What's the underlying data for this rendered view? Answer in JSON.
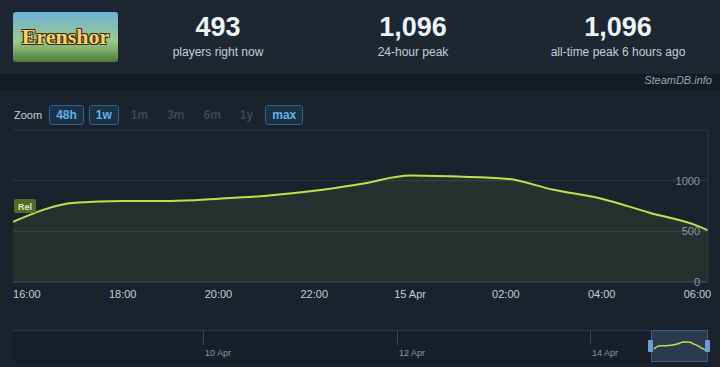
{
  "header": {
    "logo_text": "Erenshor",
    "stats": [
      {
        "value": "493",
        "label": "players right now"
      },
      {
        "value": "1,096",
        "label": "24-hour peak"
      },
      {
        "value": "1,096",
        "label": "all-time peak 6 hours ago"
      }
    ],
    "source": "SteamDB.info"
  },
  "zoom": {
    "label": "Zoom",
    "buttons": [
      {
        "text": "48h",
        "active": true
      },
      {
        "text": "1w",
        "active": true
      },
      {
        "text": "1m",
        "active": false
      },
      {
        "text": "3m",
        "active": false
      },
      {
        "text": "6m",
        "active": false
      },
      {
        "text": "1y",
        "active": false
      },
      {
        "text": "max",
        "active": true
      }
    ]
  },
  "chart_data": {
    "type": "area",
    "x": [
      15.71,
      17,
      18,
      19,
      20,
      21,
      22,
      23,
      24,
      25,
      26,
      27,
      28,
      29,
      30,
      30.22
    ],
    "values": [
      594,
      782,
      800,
      800,
      822,
      851,
      900,
      970,
      1050,
      1040,
      1020,
      910,
      822,
      683,
      554,
      510
    ],
    "color": "#c4df4c",
    "xlim": [
      15.71,
      30.22
    ],
    "xticks": [
      {
        "value": 16,
        "label": "16:00"
      },
      {
        "value": 18,
        "label": "18:00"
      },
      {
        "value": 20,
        "label": "20:00"
      },
      {
        "value": 22,
        "label": "22:00"
      },
      {
        "value": 24,
        "label": "15 Apr"
      },
      {
        "value": 26,
        "label": "02:00"
      },
      {
        "value": 28,
        "label": "04:00"
      },
      {
        "value": 30,
        "label": "06:00"
      }
    ],
    "ylim": [
      0,
      1500
    ],
    "yticks": [
      0,
      500,
      1000
    ],
    "grid": true,
    "annotations": [
      {
        "text": "Rel",
        "x": 15.71,
        "y": 750
      }
    ]
  },
  "navigator": {
    "labels": [
      "10 Apr",
      "12 Apr",
      "14 Apr"
    ]
  }
}
